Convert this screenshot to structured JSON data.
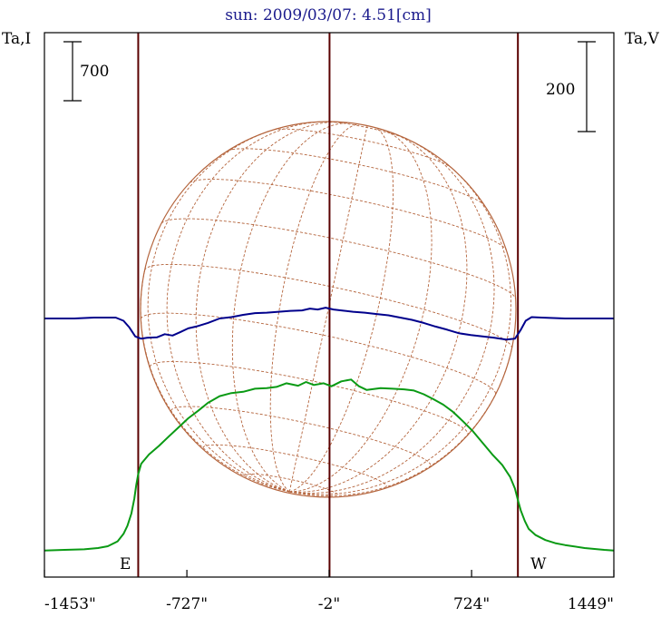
{
  "title": "sun: 2009/03/07: 4.51[cm]",
  "left_axis_label": "Ta,I",
  "right_axis_label": "Ta,V",
  "scale_bar_left": "700",
  "scale_bar_right": "200",
  "limb_label_east": "E",
  "limb_label_west": "W",
  "colors": {
    "frame": "#000000",
    "limb_lines": "#5a0000",
    "disk": "#b4643c",
    "intensity": "#0a9a14",
    "polarization": "#00008c",
    "title": "#1a1a8c"
  },
  "chart_data": {
    "type": "line",
    "title": "sun: 2009/03/07: 4.51[cm]",
    "xlabel": "",
    "xunit": "arcsec",
    "x_ticks": [
      {
        "value": -1453,
        "label": "-1453\""
      },
      {
        "value": -727,
        "label": "-727\""
      },
      {
        "value": -2,
        "label": "-2\""
      },
      {
        "value": 724,
        "label": "724\""
      },
      {
        "value": 1449,
        "label": "1449\""
      }
    ],
    "xlim": [
      -1453,
      1449
    ],
    "limb_positions": [
      -975,
      0,
      960
    ],
    "scale_bar_values": {
      "I": 700,
      "V": 200
    },
    "series": [
      {
        "name": "Ta,I",
        "axis": "left",
        "points": [
          [
            -1453,
            -29
          ],
          [
            -1350,
            -22
          ],
          [
            -1250,
            -15
          ],
          [
            -1180,
            0
          ],
          [
            -1130,
            22
          ],
          [
            -1080,
            80
          ],
          [
            -1050,
            168
          ],
          [
            -1030,
            263
          ],
          [
            -1010,
            409
          ],
          [
            -995,
            584
          ],
          [
            -985,
            751
          ],
          [
            -975,
            876
          ],
          [
            -960,
            1001
          ],
          [
            -920,
            1110
          ],
          [
            -870,
            1212
          ],
          [
            -820,
            1322
          ],
          [
            -770,
            1431
          ],
          [
            -720,
            1540
          ],
          [
            -670,
            1628
          ],
          [
            -620,
            1723
          ],
          [
            -560,
            1803
          ],
          [
            -500,
            1839
          ],
          [
            -440,
            1854
          ],
          [
            -380,
            1891
          ],
          [
            -320,
            1898
          ],
          [
            -270,
            1913
          ],
          [
            -220,
            1956
          ],
          [
            -160,
            1927
          ],
          [
            -120,
            1971
          ],
          [
            -80,
            1935
          ],
          [
            -30,
            1956
          ],
          [
            10,
            1920
          ],
          [
            60,
            1978
          ],
          [
            110,
            2000
          ],
          [
            150,
            1920
          ],
          [
            190,
            1876
          ],
          [
            260,
            1898
          ],
          [
            320,
            1891
          ],
          [
            380,
            1883
          ],
          [
            430,
            1869
          ],
          [
            480,
            1825
          ],
          [
            530,
            1766
          ],
          [
            580,
            1701
          ],
          [
            630,
            1614
          ],
          [
            680,
            1504
          ],
          [
            730,
            1388
          ],
          [
            780,
            1249
          ],
          [
            830,
            1110
          ],
          [
            880,
            987
          ],
          [
            920,
            847
          ],
          [
            945,
            707
          ],
          [
            960,
            569
          ],
          [
            975,
            445
          ],
          [
            995,
            321
          ],
          [
            1015,
            227
          ],
          [
            1050,
            154
          ],
          [
            1100,
            95
          ],
          [
            1150,
            58
          ],
          [
            1200,
            36
          ],
          [
            1300,
            0
          ],
          [
            1400,
            -22
          ],
          [
            1449,
            -29
          ]
        ]
      },
      {
        "name": "Ta,V",
        "axis": "right",
        "points": [
          [
            -1453,
            0
          ],
          [
            -1300,
            0
          ],
          [
            -1200,
            2
          ],
          [
            -1090,
            2
          ],
          [
            -1050,
            -5
          ],
          [
            -1020,
            -20
          ],
          [
            -990,
            -40
          ],
          [
            -960,
            -45
          ],
          [
            -930,
            -43
          ],
          [
            -880,
            -42
          ],
          [
            -840,
            -35
          ],
          [
            -800,
            -38
          ],
          [
            -760,
            -30
          ],
          [
            -720,
            -22
          ],
          [
            -680,
            -18
          ],
          [
            -620,
            -10
          ],
          [
            -560,
            0
          ],
          [
            -500,
            3
          ],
          [
            -440,
            8
          ],
          [
            -380,
            12
          ],
          [
            -320,
            13
          ],
          [
            -260,
            15
          ],
          [
            -200,
            17
          ],
          [
            -140,
            18
          ],
          [
            -100,
            22
          ],
          [
            -60,
            20
          ],
          [
            -20,
            24
          ],
          [
            20,
            20
          ],
          [
            60,
            18
          ],
          [
            120,
            15
          ],
          [
            180,
            13
          ],
          [
            240,
            10
          ],
          [
            300,
            7
          ],
          [
            360,
            2
          ],
          [
            420,
            -3
          ],
          [
            480,
            -10
          ],
          [
            540,
            -18
          ],
          [
            600,
            -25
          ],
          [
            660,
            -33
          ],
          [
            720,
            -37
          ],
          [
            780,
            -40
          ],
          [
            840,
            -43
          ],
          [
            900,
            -47
          ],
          [
            945,
            -45
          ],
          [
            975,
            -25
          ],
          [
            1000,
            -5
          ],
          [
            1030,
            3
          ],
          [
            1080,
            2
          ],
          [
            1200,
            0
          ],
          [
            1449,
            0
          ]
        ]
      }
    ]
  }
}
